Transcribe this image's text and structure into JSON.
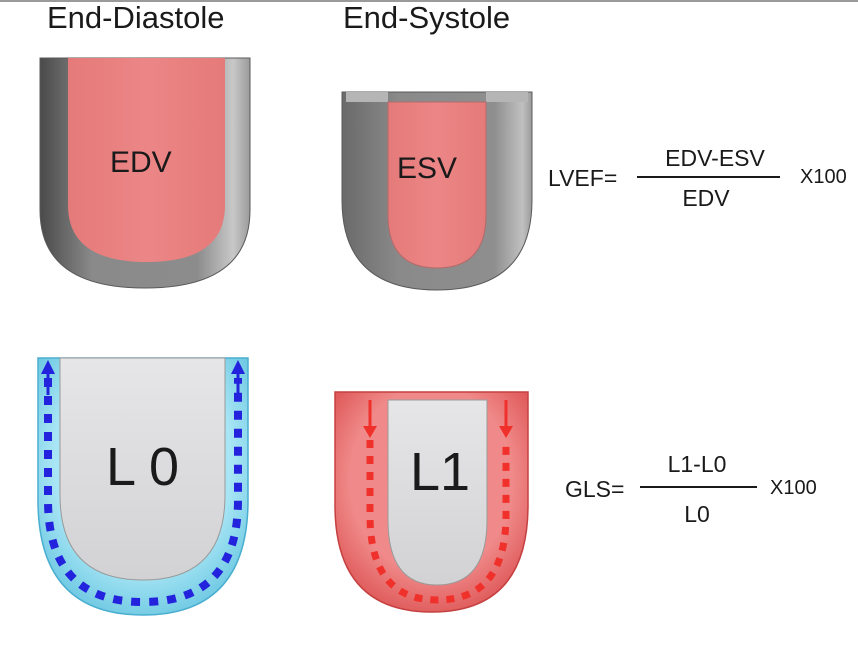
{
  "headers": {
    "left": "End-Diastole",
    "right": "End-Systole"
  },
  "ventricles": {
    "edv_label": "EDV",
    "esv_label": "ESV",
    "l0_label": "L 0",
    "l1_label": "L1"
  },
  "lvef_formula": {
    "lhs": "LVEF=",
    "numerator": "EDV-ESV",
    "denominator": "EDV",
    "multiplier": "X100"
  },
  "gls_formula": {
    "lhs": "GLS=",
    "numerator": "L1-L0",
    "denominator": "L0",
    "multiplier": "X100"
  },
  "colors": {
    "wall_gray": "#8a8a8a",
    "chamber_pink": "#e98080",
    "strain_cyan": "#7fd3ea",
    "strain_dash_blue": "#2323dd",
    "strain_red": "#e45f5f",
    "strain_dash_red": "#f0302a",
    "inner_gray": "#dcdcde"
  }
}
